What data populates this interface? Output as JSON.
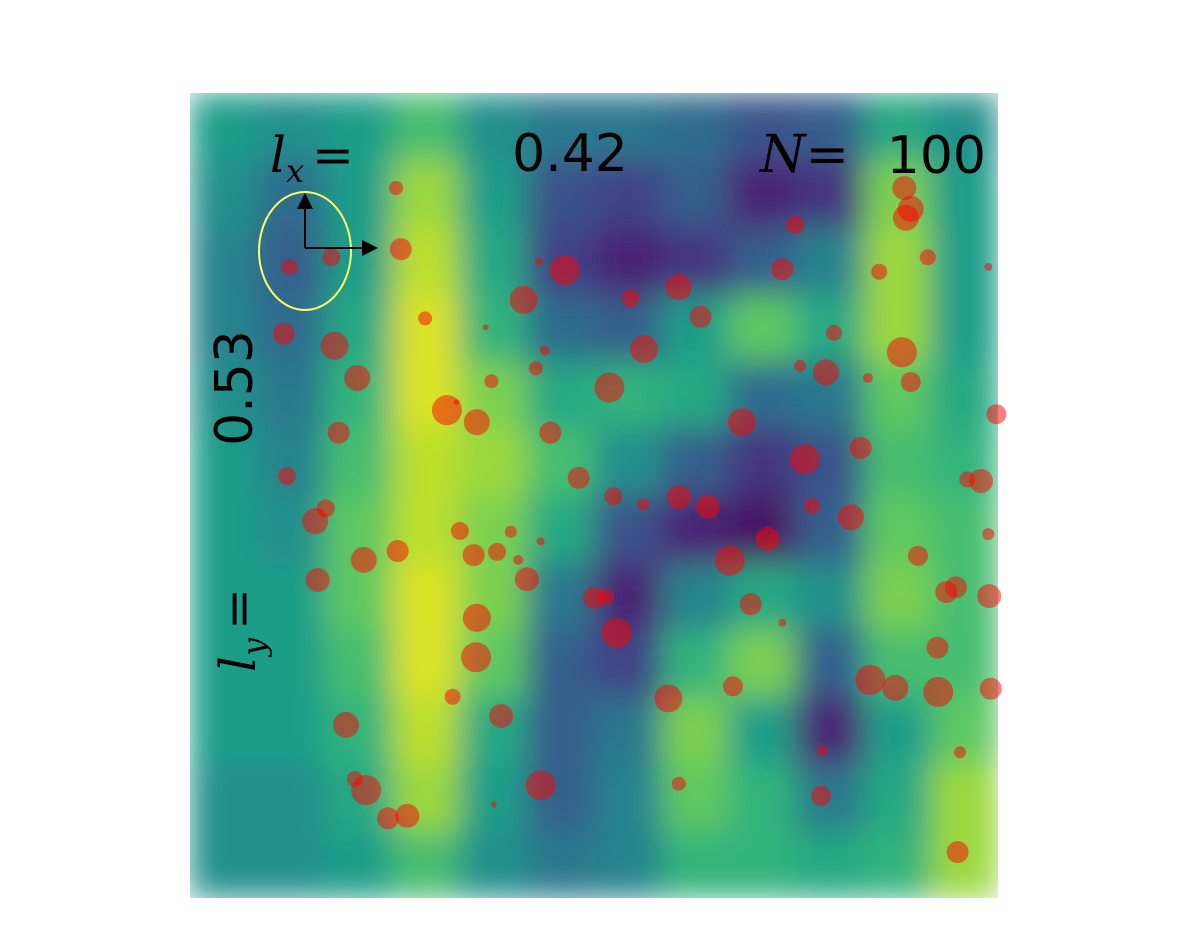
{
  "chart_data": {
    "type": "scatter",
    "annotations": {
      "lx": {
        "symbol": "l",
        "sub": "x",
        "eq": "=",
        "value": 0.42
      },
      "ly": {
        "symbol": "l",
        "sub": "y",
        "eq": "=",
        "value": 0.53
      },
      "n": {
        "symbol": "N",
        "eq": "=",
        "value": 100
      }
    },
    "color": "#ff0000",
    "heatmap": {
      "colormap": "viridis",
      "values": [
        [
          0.55,
          0.5,
          0.55,
          0.7,
          0.5,
          0.4,
          0.4,
          0.35,
          0.25,
          0.3,
          0.6,
          0.5
        ],
        [
          0.5,
          0.35,
          0.55,
          0.85,
          0.55,
          0.25,
          0.2,
          0.3,
          0.1,
          0.15,
          0.8,
          0.55
        ],
        [
          0.45,
          0.3,
          0.55,
          0.9,
          0.6,
          0.2,
          0.1,
          0.15,
          0.3,
          0.45,
          0.85,
          0.55
        ],
        [
          0.45,
          0.35,
          0.6,
          0.95,
          0.65,
          0.35,
          0.3,
          0.55,
          0.75,
          0.6,
          0.85,
          0.55
        ],
        [
          0.5,
          0.4,
          0.65,
          0.95,
          0.8,
          0.6,
          0.65,
          0.6,
          0.35,
          0.4,
          0.75,
          0.6
        ],
        [
          0.55,
          0.45,
          0.7,
          0.9,
          0.85,
          0.7,
          0.5,
          0.3,
          0.15,
          0.25,
          0.7,
          0.65
        ],
        [
          0.55,
          0.5,
          0.75,
          0.9,
          0.8,
          0.6,
          0.25,
          0.1,
          0.05,
          0.3,
          0.75,
          0.7
        ],
        [
          0.55,
          0.55,
          0.75,
          0.95,
          0.8,
          0.4,
          0.1,
          0.45,
          0.6,
          0.5,
          0.8,
          0.7
        ],
        [
          0.55,
          0.55,
          0.7,
          0.95,
          0.75,
          0.3,
          0.2,
          0.65,
          0.8,
          0.3,
          0.7,
          0.7
        ],
        [
          0.55,
          0.55,
          0.65,
          0.9,
          0.6,
          0.3,
          0.4,
          0.8,
          0.55,
          0.1,
          0.55,
          0.75
        ],
        [
          0.5,
          0.5,
          0.6,
          0.85,
          0.55,
          0.3,
          0.45,
          0.75,
          0.65,
          0.4,
          0.6,
          0.85
        ],
        [
          0.5,
          0.5,
          0.55,
          0.7,
          0.5,
          0.4,
          0.45,
          0.65,
          0.65,
          0.6,
          0.65,
          0.85
        ]
      ]
    },
    "x": [
      0.255,
      0.261,
      0.123,
      0.175,
      0.116,
      0.179,
      0.207,
      0.291,
      0.184,
      0.12,
      0.168,
      0.155,
      0.215,
      0.257,
      0.158,
      0.318,
      0.355,
      0.33,
      0.334,
      0.351,
      0.38,
      0.397,
      0.406,
      0.434,
      0.417,
      0.355,
      0.354,
      0.325,
      0.385,
      0.193,
      0.204,
      0.218,
      0.245,
      0.269,
      0.376,
      0.434,
      0.413,
      0.464,
      0.432,
      0.366,
      0.439,
      0.428,
      0.373,
      0.519,
      0.446,
      0.481,
      0.524,
      0.561,
      0.605,
      0.641,
      0.545,
      0.605,
      0.632,
      0.562,
      0.683,
      0.715,
      0.668,
      0.5,
      0.515,
      0.528,
      0.694,
      0.733,
      0.592,
      0.672,
      0.605,
      0.781,
      0.782,
      0.749,
      0.733,
      0.797,
      0.787,
      0.755,
      0.839,
      0.853,
      0.884,
      0.892,
      0.886,
      0.913,
      0.988,
      0.881,
      0.892,
      0.998,
      0.83,
      0.761,
      0.77,
      0.818,
      0.962,
      0.979,
      0.988,
      0.901,
      0.936,
      0.948,
      0.989,
      0.925,
      0.842,
      0.873,
      0.926,
      0.991,
      0.953,
      0.95
    ],
    "y": [
      0.118,
      0.194,
      0.216,
      0.204,
      0.299,
      0.314,
      0.354,
      0.28,
      0.422,
      0.476,
      0.516,
      0.532,
      0.58,
      0.569,
      0.605,
      0.394,
      0.409,
      0.384,
      0.544,
      0.574,
      0.57,
      0.545,
      0.58,
      0.557,
      0.604,
      0.652,
      0.701,
      0.75,
      0.774,
      0.785,
      0.852,
      0.866,
      0.901,
      0.898,
      0.884,
      0.86,
      0.257,
      0.22,
      0.209,
      0.291,
      0.32,
      0.342,
      0.358,
      0.366,
      0.422,
      0.478,
      0.501,
      0.511,
      0.502,
      0.514,
      0.255,
      0.241,
      0.278,
      0.318,
      0.409,
      0.554,
      0.581,
      0.627,
      0.626,
      0.671,
      0.635,
      0.658,
      0.752,
      0.737,
      0.858,
      0.873,
      0.817,
      0.164,
      0.219,
      0.298,
      0.347,
      0.339,
      0.354,
      0.222,
      0.118,
      0.144,
      0.155,
      0.204,
      0.216,
      0.322,
      0.359,
      0.399,
      0.441,
      0.455,
      0.513,
      0.527,
      0.48,
      0.482,
      0.548,
      0.575,
      0.62,
      0.614,
      0.625,
      0.689,
      0.729,
      0.739,
      0.744,
      0.74,
      0.819,
      0.943
    ],
    "sizes": [
      7,
      11,
      8,
      9,
      11,
      14,
      13,
      7,
      11,
      9,
      9,
      13,
      13,
      11,
      12,
      15,
      13,
      3,
      9,
      11,
      9,
      6,
      5,
      4,
      12,
      14,
      15,
      8,
      12,
      13,
      8,
      15,
      11,
      12,
      3,
      15,
      14,
      15,
      4,
      3,
      5,
      7,
      7,
      15,
      11,
      11,
      9,
      6,
      12,
      12,
      9,
      13,
      11,
      14,
      14,
      12,
      15,
      11,
      8,
      15,
      11,
      4,
      14,
      10,
      7,
      10,
      5,
      9,
      11,
      8,
      13,
      6,
      5,
      8,
      12,
      13,
      13,
      8,
      4,
      15,
      10,
      10,
      11,
      15,
      8,
      13,
      8,
      12,
      6,
      10,
      11,
      11,
      12,
      11,
      15,
      13,
      15,
      11,
      6,
      11
    ]
  }
}
